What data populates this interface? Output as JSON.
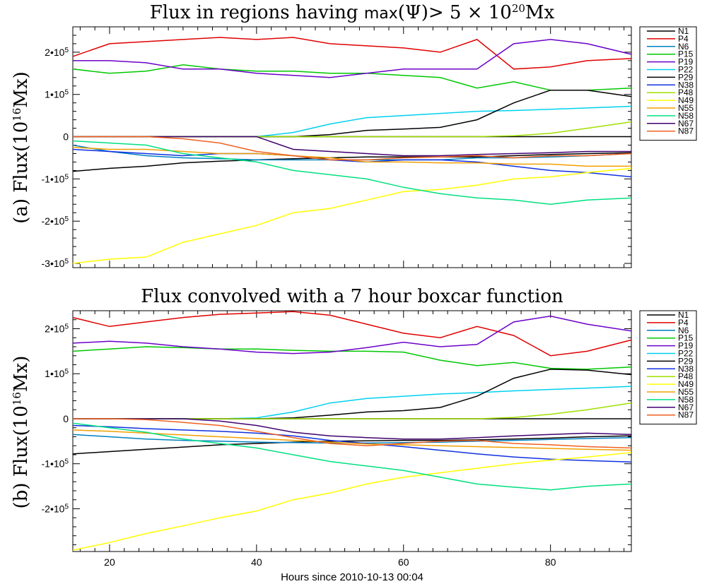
{
  "chart_data": [
    {
      "type": "line",
      "panel": "a",
      "title": "Flux in regions having max(Ψ)> 5 × 10^20Mx",
      "ylabel": "(a) Flux(10^16Mx)",
      "xlim": [
        15,
        91
      ],
      "ylim": [
        -310000,
        260000
      ],
      "yticks": [
        {
          "v": 200000,
          "label": "2•10^5"
        },
        {
          "v": 100000,
          "label": "1•10^5"
        },
        {
          "v": 0,
          "label": "0"
        },
        {
          "v": -100000,
          "label": "-1•10^5"
        },
        {
          "v": -200000,
          "label": "-2•10^5"
        },
        {
          "v": -300000,
          "label": "-3•10^5"
        }
      ],
      "xticks": [
        20,
        40,
        60,
        80
      ],
      "show_x_ticklabels": false,
      "legend": "outside-right",
      "x": [
        15,
        20,
        25,
        30,
        35,
        40,
        45,
        50,
        55,
        60,
        65,
        70,
        75,
        80,
        85,
        91
      ],
      "series": [
        {
          "name": "N1",
          "color": "#000000",
          "values": [
            -82000,
            -75000,
            -70000,
            -62000,
            -58000,
            -55000,
            -52000,
            -50000,
            -48000,
            -48000,
            -48000,
            -48000,
            -45000,
            -42000,
            -40000,
            -38000
          ]
        },
        {
          "name": "P4",
          "color": "#e00000",
          "values": [
            190000,
            220000,
            225000,
            230000,
            235000,
            230000,
            235000,
            220000,
            215000,
            210000,
            200000,
            230000,
            160000,
            165000,
            180000,
            185000
          ]
        },
        {
          "name": "N6",
          "color": "#0080c0",
          "values": [
            -20000,
            -35000,
            -45000,
            -50000,
            -52000,
            -55000,
            -55000,
            -55000,
            -55000,
            -55000,
            -55000,
            -50000,
            -50000,
            -48000,
            -45000,
            -40000
          ]
        },
        {
          "name": "P15",
          "color": "#00c800",
          "values": [
            160000,
            150000,
            155000,
            170000,
            160000,
            155000,
            155000,
            150000,
            150000,
            145000,
            140000,
            115000,
            130000,
            110000,
            110000,
            115000
          ]
        },
        {
          "name": "P19",
          "color": "#6a00c8",
          "values": [
            180000,
            180000,
            175000,
            160000,
            160000,
            150000,
            145000,
            140000,
            150000,
            160000,
            160000,
            160000,
            220000,
            230000,
            220000,
            195000
          ]
        },
        {
          "name": "P22",
          "color": "#00d0f0",
          "values": [
            0,
            0,
            0,
            0,
            0,
            0,
            10000,
            30000,
            45000,
            50000,
            55000,
            60000,
            62000,
            65000,
            68000,
            72000
          ]
        },
        {
          "name": "P29",
          "color": "#000000",
          "values": [
            0,
            0,
            0,
            0,
            0,
            0,
            0,
            5000,
            15000,
            18000,
            22000,
            40000,
            80000,
            110000,
            110000,
            95000
          ]
        },
        {
          "name": "N38",
          "color": "#1030e0",
          "values": [
            -30000,
            -35000,
            -40000,
            -45000,
            -40000,
            -40000,
            -45000,
            -55000,
            -60000,
            -55000,
            -55000,
            -60000,
            -70000,
            -80000,
            -85000,
            -95000
          ]
        },
        {
          "name": "P48",
          "color": "#a0e000",
          "values": [
            0,
            0,
            0,
            0,
            0,
            0,
            0,
            0,
            0,
            0,
            0,
            0,
            2000,
            8000,
            20000,
            35000
          ]
        },
        {
          "name": "N49",
          "color": "#ffff00",
          "values": [
            -300000,
            -290000,
            -285000,
            -250000,
            -230000,
            -210000,
            -180000,
            -170000,
            -150000,
            -130000,
            -125000,
            -115000,
            -100000,
            -95000,
            -85000,
            -75000
          ]
        },
        {
          "name": "N55",
          "color": "#f0a000",
          "values": [
            -25000,
            -30000,
            -30000,
            -35000,
            -40000,
            -40000,
            -45000,
            -50000,
            -60000,
            -60000,
            -62000,
            -62000,
            -65000,
            -65000,
            -70000,
            -70000
          ]
        },
        {
          "name": "N58",
          "color": "#00e080",
          "values": [
            -10000,
            -15000,
            -20000,
            -40000,
            -50000,
            -60000,
            -80000,
            -90000,
            -100000,
            -120000,
            -135000,
            -145000,
            -150000,
            -160000,
            -150000,
            -145000
          ]
        },
        {
          "name": "N67",
          "color": "#400070",
          "values": [
            0,
            0,
            0,
            0,
            0,
            0,
            -30000,
            -35000,
            -40000,
            -45000,
            -45000,
            -42000,
            -40000,
            -38000,
            -35000,
            -35000
          ]
        },
        {
          "name": "N87",
          "color": "#f06020",
          "values": [
            0,
            0,
            0,
            -5000,
            -15000,
            -35000,
            -45000,
            -55000,
            -55000,
            -50000,
            -48000,
            -45000,
            -50000,
            -45000,
            -45000,
            -40000
          ]
        }
      ]
    },
    {
      "type": "line",
      "panel": "b",
      "title": "Flux convolved with a 7 hour boxcar function",
      "ylabel": "(b) Flux(10^16Mx)",
      "xlabel": "Hours since 2010-10-13 00:04",
      "xlim": [
        15,
        91
      ],
      "ylim": [
        -295000,
        240000
      ],
      "yticks": [
        {
          "v": 200000,
          "label": "2•10^5"
        },
        {
          "v": 100000,
          "label": "1•10^5"
        },
        {
          "v": 0,
          "label": "0"
        },
        {
          "v": -100000,
          "label": "-1•10^5"
        },
        {
          "v": -200000,
          "label": "-2•10^5"
        }
      ],
      "xticks": [
        20,
        40,
        60,
        80
      ],
      "show_x_ticklabels": true,
      "legend": "outside-right",
      "x": [
        15,
        20,
        25,
        30,
        35,
        40,
        45,
        50,
        55,
        60,
        65,
        70,
        75,
        80,
        85,
        91
      ],
      "series": [
        {
          "name": "N1",
          "color": "#000000",
          "values": [
            -78000,
            -73000,
            -68000,
            -63000,
            -58000,
            -55000,
            -52000,
            -50000,
            -49000,
            -48000,
            -48000,
            -47000,
            -45000,
            -43000,
            -40000,
            -38000
          ]
        },
        {
          "name": "P4",
          "color": "#e00000",
          "values": [
            225000,
            205000,
            215000,
            225000,
            232000,
            235000,
            238000,
            230000,
            210000,
            190000,
            180000,
            205000,
            185000,
            140000,
            150000,
            175000
          ]
        },
        {
          "name": "N6",
          "color": "#0080c0",
          "values": [
            -35000,
            -40000,
            -45000,
            -48000,
            -50000,
            -52000,
            -53000,
            -54000,
            -54000,
            -53000,
            -52000,
            -50000,
            -48000,
            -46000,
            -44000,
            -42000
          ]
        },
        {
          "name": "P15",
          "color": "#00c800",
          "values": [
            150000,
            155000,
            160000,
            158000,
            155000,
            155000,
            152000,
            150000,
            150000,
            148000,
            130000,
            118000,
            125000,
            112000,
            110000,
            115000
          ]
        },
        {
          "name": "P19",
          "color": "#6a00c8",
          "values": [
            168000,
            172000,
            168000,
            160000,
            155000,
            148000,
            145000,
            148000,
            158000,
            170000,
            160000,
            165000,
            215000,
            228000,
            210000,
            195000
          ]
        },
        {
          "name": "P22",
          "color": "#00d0f0",
          "values": [
            0,
            0,
            0,
            0,
            0,
            2000,
            15000,
            35000,
            45000,
            50000,
            55000,
            58000,
            62000,
            65000,
            68000,
            72000
          ]
        },
        {
          "name": "P29",
          "color": "#000000",
          "values": [
            0,
            0,
            0,
            0,
            0,
            0,
            2000,
            8000,
            15000,
            18000,
            25000,
            50000,
            90000,
            110000,
            108000,
            98000
          ]
        },
        {
          "name": "N38",
          "color": "#1030e0",
          "values": [
            -15000,
            -18000,
            -22000,
            -25000,
            -28000,
            -32000,
            -38000,
            -48000,
            -55000,
            -62000,
            -70000,
            -78000,
            -85000,
            -90000,
            -93000,
            -96000
          ]
        },
        {
          "name": "P48",
          "color": "#a0e000",
          "values": [
            0,
            0,
            0,
            0,
            0,
            0,
            0,
            0,
            0,
            0,
            0,
            0,
            3000,
            10000,
            20000,
            35000
          ]
        },
        {
          "name": "N49",
          "color": "#ffff00",
          "values": [
            -292000,
            -275000,
            -255000,
            -238000,
            -220000,
            -205000,
            -180000,
            -165000,
            -145000,
            -130000,
            -120000,
            -110000,
            -100000,
            -92000,
            -85000,
            -75000
          ]
        },
        {
          "name": "N55",
          "color": "#f0a000",
          "values": [
            -25000,
            -28000,
            -32000,
            -36000,
            -40000,
            -44000,
            -48000,
            -52000,
            -56000,
            -58000,
            -60000,
            -62000,
            -64000,
            -66000,
            -68000,
            -70000
          ]
        },
        {
          "name": "N58",
          "color": "#00e080",
          "values": [
            -10000,
            -20000,
            -30000,
            -45000,
            -55000,
            -65000,
            -80000,
            -95000,
            -105000,
            -115000,
            -130000,
            -145000,
            -152000,
            -158000,
            -150000,
            -145000
          ]
        },
        {
          "name": "N67",
          "color": "#400070",
          "values": [
            0,
            0,
            0,
            0,
            -5000,
            -15000,
            -30000,
            -38000,
            -42000,
            -45000,
            -45000,
            -42000,
            -38000,
            -35000,
            -32000,
            -35000
          ]
        },
        {
          "name": "N87",
          "color": "#f06020",
          "values": [
            0,
            0,
            -2000,
            -8000,
            -15000,
            -28000,
            -42000,
            -55000,
            -60000,
            -55000,
            -50000,
            -48000,
            -55000,
            -58000,
            -62000,
            -65000
          ]
        }
      ]
    }
  ]
}
